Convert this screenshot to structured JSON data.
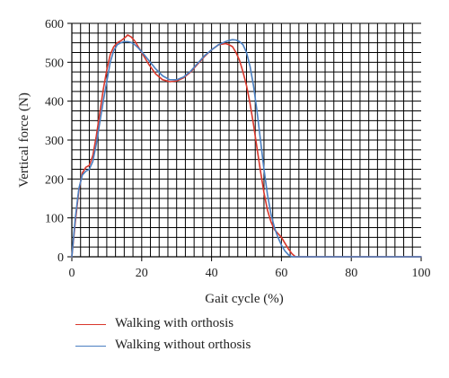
{
  "chart_data": {
    "type": "line",
    "xlabel": "Gait cycle (%)",
    "ylabel": "Vertical force (N)",
    "xlim": [
      0,
      100
    ],
    "ylim": [
      0,
      600
    ],
    "xticks": [
      0,
      20,
      40,
      60,
      80,
      100
    ],
    "yticks": [
      0,
      100,
      200,
      300,
      400,
      500,
      600
    ],
    "grid": true,
    "minor_grid_x_step": 2.5,
    "minor_grid_y_step": 25,
    "legend_position": "bottom-left",
    "series": [
      {
        "name": "Walking with orthosis",
        "color": "#d9372c",
        "x": [
          0,
          1,
          2,
          3,
          4,
          5,
          6,
          7,
          8,
          9,
          10,
          11,
          12,
          13,
          14,
          15,
          16,
          17,
          18,
          19,
          20,
          22,
          24,
          26,
          28,
          30,
          32,
          34,
          36,
          38,
          40,
          42,
          44,
          45,
          46,
          47,
          48,
          49,
          50,
          51,
          52,
          53,
          54,
          55,
          56,
          57,
          58,
          59,
          60,
          61,
          62,
          63,
          64,
          70,
          80,
          90,
          100
        ],
        "y": [
          0,
          90,
          170,
          215,
          230,
          235,
          260,
          310,
          370,
          430,
          480,
          520,
          540,
          550,
          555,
          562,
          570,
          565,
          555,
          540,
          525,
          495,
          470,
          455,
          450,
          452,
          460,
          475,
          495,
          515,
          532,
          545,
          548,
          545,
          540,
          525,
          505,
          475,
          440,
          395,
          340,
          280,
          220,
          165,
          120,
          90,
          70,
          60,
          50,
          35,
          20,
          8,
          0,
          0,
          0,
          0,
          0
        ]
      },
      {
        "name": "Walking without orthosis",
        "color": "#4a7fc1",
        "x": [
          0,
          1,
          2,
          3,
          4,
          5,
          6,
          7,
          8,
          9,
          10,
          11,
          12,
          13,
          14,
          15,
          16,
          17,
          18,
          19,
          20,
          22,
          24,
          26,
          28,
          30,
          32,
          34,
          36,
          38,
          40,
          42,
          44,
          45,
          46,
          47,
          48,
          49,
          50,
          51,
          52,
          53,
          54,
          55,
          56,
          57,
          58,
          59,
          60,
          61,
          62,
          63,
          64,
          70,
          80,
          90,
          100
        ],
        "y": [
          0,
          100,
          175,
          210,
          220,
          225,
          245,
          290,
          345,
          400,
          450,
          500,
          530,
          545,
          550,
          553,
          553,
          551,
          545,
          537,
          527,
          505,
          483,
          465,
          455,
          455,
          462,
          477,
          497,
          517,
          532,
          545,
          553,
          556,
          558,
          557,
          553,
          545,
          525,
          490,
          440,
          375,
          300,
          225,
          160,
          110,
          75,
          50,
          30,
          15,
          5,
          0,
          0,
          0,
          0,
          0,
          0
        ]
      }
    ]
  }
}
